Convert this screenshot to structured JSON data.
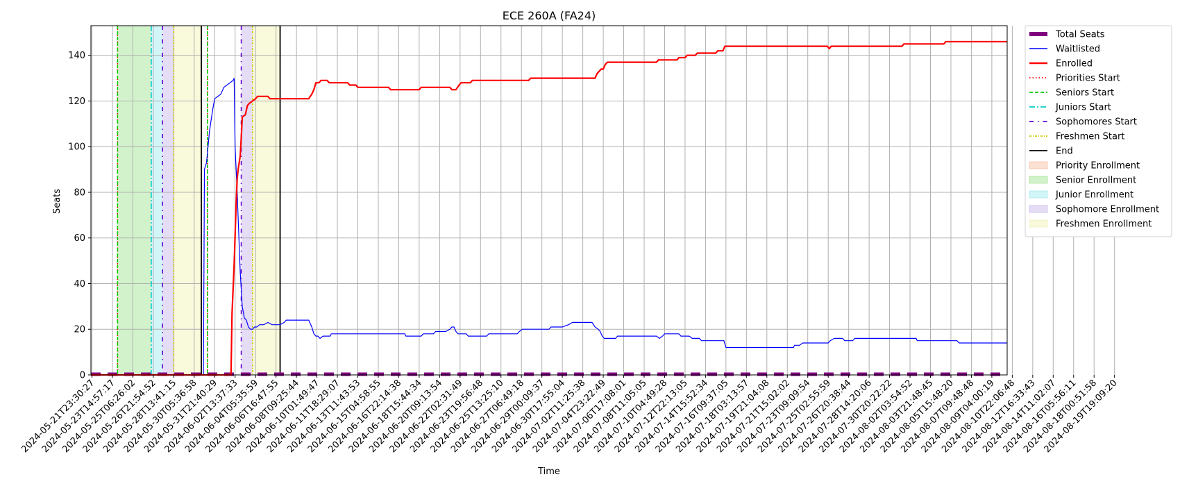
{
  "chart_data": {
    "type": "line",
    "title": "ECE 260A (FA24)",
    "xlabel": "Time",
    "ylabel": "Seats",
    "ylim": [
      0,
      153
    ],
    "y_ticks": [
      0,
      20,
      40,
      60,
      80,
      100,
      120,
      140
    ],
    "grid": true,
    "legend_position": "outside right",
    "x_tick_labels": [
      "2024-05-21T23:30:27",
      "2024-05-23T14:57:17",
      "2024-05-25T06:26:02",
      "2024-05-26T21:54:52",
      "2024-05-28T13:41:15",
      "2024-05-30T05:36:58",
      "2024-05-31T21:40:29",
      "2024-06-02T13:37:33",
      "2024-06-04T05:35:59",
      "2024-06-06T16:47:55",
      "2024-06-08T09:25:44",
      "2024-06-10T01:49:47",
      "2024-06-11T18:29:07",
      "2024-06-13T11:43:53",
      "2024-06-15T04:58:55",
      "2024-06-16T22:14:38",
      "2024-06-18T15:44:34",
      "2024-06-20T09:13:54",
      "2024-06-22T02:31:49",
      "2024-06-23T19:56:48",
      "2024-06-25T13:25:10",
      "2024-06-27T06:49:18",
      "2024-06-29T00:09:37",
      "2024-06-30T17:55:04",
      "2024-07-02T11:25:38",
      "2024-07-04T23:22:49",
      "2024-07-06T17:08:01",
      "2024-07-08T11:05:05",
      "2024-07-10T04:49:28",
      "2024-07-12T22:13:05",
      "2024-07-14T15:52:34",
      "2024-07-16T09:37:05",
      "2024-07-18T03:13:57",
      "2024-07-19T21:04:08",
      "2024-07-21T15:02:02",
      "2024-07-23T09:09:54",
      "2024-07-25T02:55:59",
      "2024-07-26T20:38:44",
      "2024-07-28T14:20:06",
      "2024-07-30T20:22:22",
      "2024-08-02T03:54:52",
      "2024-08-03T21:48:45",
      "2024-08-05T15:48:20",
      "2024-08-07T09:48:48",
      "2024-08-09T04:00:19",
      "2024-08-10T22:06:48",
      "2024-08-12T16:33:43",
      "2024-08-14T11:02:07",
      "2024-08-16T05:56:11",
      "2024-08-18T00:51:58",
      "2024-08-19T19:09:20"
    ],
    "x_range": [
      -0.05,
      44.75
    ],
    "series": [
      {
        "name": "Total Seats",
        "color": "#800080",
        "style": "thick-dashed",
        "points": [
          [
            -0.05,
            0
          ],
          [
            44.75,
            0
          ]
        ]
      },
      {
        "name": "Waitlisted",
        "color": "#0000ff",
        "style": "solid-thin",
        "points": [
          [
            -0.05,
            0
          ],
          [
            5.45,
            0
          ],
          [
            5.5,
            90
          ],
          [
            5.6,
            93
          ],
          [
            5.75,
            107
          ],
          [
            5.9,
            116
          ],
          [
            6.0,
            121
          ],
          [
            6.15,
            122
          ],
          [
            6.3,
            123
          ],
          [
            6.45,
            126
          ],
          [
            6.6,
            127
          ],
          [
            6.75,
            128
          ],
          [
            6.9,
            129
          ],
          [
            6.95,
            130
          ],
          [
            7.0,
            100
          ],
          [
            7.1,
            80
          ],
          [
            7.25,
            45
          ],
          [
            7.35,
            30
          ],
          [
            7.45,
            25
          ],
          [
            7.55,
            24
          ],
          [
            7.65,
            21
          ],
          [
            7.75,
            20
          ],
          [
            7.85,
            20
          ],
          [
            7.95,
            21
          ],
          [
            8.05,
            21
          ],
          [
            8.2,
            22
          ],
          [
            8.4,
            22
          ],
          [
            8.6,
            23
          ],
          [
            8.8,
            22
          ],
          [
            9.2,
            22
          ],
          [
            9.4,
            23
          ],
          [
            9.5,
            24
          ],
          [
            10.6,
            24
          ],
          [
            10.75,
            21
          ],
          [
            10.85,
            18
          ],
          [
            10.95,
            17
          ],
          [
            11.05,
            17
          ],
          [
            11.15,
            16
          ],
          [
            11.3,
            17
          ],
          [
            11.65,
            17
          ],
          [
            11.7,
            18
          ],
          [
            15.3,
            18
          ],
          [
            15.35,
            17
          ],
          [
            16.1,
            17
          ],
          [
            16.2,
            18
          ],
          [
            16.7,
            18
          ],
          [
            16.8,
            19
          ],
          [
            17.3,
            19
          ],
          [
            17.5,
            20
          ],
          [
            17.6,
            21
          ],
          [
            17.7,
            21
          ],
          [
            17.8,
            19
          ],
          [
            17.9,
            18
          ],
          [
            18.3,
            18
          ],
          [
            18.4,
            17
          ],
          [
            19.3,
            17
          ],
          [
            19.4,
            18
          ],
          [
            20.8,
            18
          ],
          [
            20.9,
            19
          ],
          [
            21.05,
            20
          ],
          [
            22.35,
            20
          ],
          [
            22.45,
            21
          ],
          [
            23.0,
            21
          ],
          [
            23.3,
            22
          ],
          [
            23.5,
            23
          ],
          [
            24.45,
            23
          ],
          [
            24.6,
            21
          ],
          [
            24.75,
            20
          ],
          [
            24.85,
            19
          ],
          [
            24.95,
            17
          ],
          [
            25.05,
            16
          ],
          [
            25.6,
            16
          ],
          [
            25.7,
            17
          ],
          [
            27.6,
            17
          ],
          [
            27.75,
            16
          ],
          [
            27.9,
            17
          ],
          [
            28.0,
            18
          ],
          [
            28.7,
            18
          ],
          [
            28.8,
            17
          ],
          [
            29.2,
            17
          ],
          [
            29.35,
            16
          ],
          [
            29.7,
            16
          ],
          [
            29.8,
            15
          ],
          [
            30.9,
            15
          ],
          [
            31.0,
            12
          ],
          [
            34.3,
            12
          ],
          [
            34.35,
            13
          ],
          [
            34.6,
            13
          ],
          [
            34.75,
            14
          ],
          [
            36.0,
            14
          ],
          [
            36.1,
            15
          ],
          [
            36.3,
            16
          ],
          [
            36.7,
            16
          ],
          [
            36.8,
            15
          ],
          [
            37.2,
            15
          ],
          [
            37.3,
            16
          ],
          [
            40.3,
            16
          ],
          [
            40.35,
            15
          ],
          [
            42.3,
            15
          ],
          [
            42.4,
            14
          ],
          [
            44.75,
            14
          ]
        ]
      },
      {
        "name": "Enrolled",
        "color": "#ff0000",
        "style": "solid-thick",
        "points": [
          [
            -0.05,
            0
          ],
          [
            6.8,
            0
          ],
          [
            6.85,
            27
          ],
          [
            6.95,
            48
          ],
          [
            7.05,
            75
          ],
          [
            7.1,
            86
          ],
          [
            7.15,
            90
          ],
          [
            7.25,
            96
          ],
          [
            7.3,
            104
          ],
          [
            7.35,
            113
          ],
          [
            7.5,
            114
          ],
          [
            7.6,
            118
          ],
          [
            7.7,
            119
          ],
          [
            7.85,
            120
          ],
          [
            8.0,
            121
          ],
          [
            8.1,
            122
          ],
          [
            8.6,
            122
          ],
          [
            8.7,
            121
          ],
          [
            10.6,
            121
          ],
          [
            10.75,
            123
          ],
          [
            10.85,
            125
          ],
          [
            10.95,
            128
          ],
          [
            11.1,
            128
          ],
          [
            11.2,
            129
          ],
          [
            11.5,
            129
          ],
          [
            11.6,
            128
          ],
          [
            12.5,
            128
          ],
          [
            12.6,
            127
          ],
          [
            12.9,
            127
          ],
          [
            13.0,
            126
          ],
          [
            14.5,
            126
          ],
          [
            14.6,
            125
          ],
          [
            16.0,
            125
          ],
          [
            16.1,
            126
          ],
          [
            17.5,
            126
          ],
          [
            17.6,
            125
          ],
          [
            17.8,
            125
          ],
          [
            17.95,
            127
          ],
          [
            18.05,
            128
          ],
          [
            18.5,
            128
          ],
          [
            18.6,
            129
          ],
          [
            21.35,
            129
          ],
          [
            21.45,
            130
          ],
          [
            24.6,
            130
          ],
          [
            24.7,
            132
          ],
          [
            24.8,
            133
          ],
          [
            24.9,
            134
          ],
          [
            25.0,
            134
          ],
          [
            25.1,
            136
          ],
          [
            25.2,
            137
          ],
          [
            27.6,
            137
          ],
          [
            27.7,
            138
          ],
          [
            28.6,
            138
          ],
          [
            28.7,
            139
          ],
          [
            29.0,
            139
          ],
          [
            29.1,
            140
          ],
          [
            29.5,
            140
          ],
          [
            29.6,
            141
          ],
          [
            30.5,
            141
          ],
          [
            30.6,
            142
          ],
          [
            30.85,
            142
          ],
          [
            30.95,
            144
          ],
          [
            35.95,
            144
          ],
          [
            36.05,
            143
          ],
          [
            36.15,
            144
          ],
          [
            39.6,
            144
          ],
          [
            39.7,
            145
          ],
          [
            41.65,
            145
          ],
          [
            41.75,
            146
          ],
          [
            44.75,
            146
          ]
        ]
      }
    ],
    "vlines": [
      {
        "name": "Priorities Start",
        "color": "#ff0000",
        "style": "dotted",
        "x": [
          1.25,
          5.65
        ]
      },
      {
        "name": "Seniors Start",
        "color": "#00cc00",
        "style": "dashed",
        "x": [
          1.25,
          5.65
        ]
      },
      {
        "name": "Juniors Start",
        "color": "#00cccc",
        "style": "dashdot",
        "x": [
          2.9
        ]
      },
      {
        "name": "Sophomores Start",
        "color": "#6600cc",
        "style": "loosedash",
        "x": [
          3.45,
          7.3
        ]
      },
      {
        "name": "Freshmen Start",
        "color": "#cccc00",
        "style": "dashdot-dense",
        "x": [
          4.0,
          7.85
        ]
      },
      {
        "name": "End",
        "color": "#000000",
        "style": "solid",
        "x": [
          5.35,
          9.2
        ]
      }
    ],
    "spans": [
      {
        "name": "Priority Enrollment",
        "color": "#f4a582",
        "ranges": []
      },
      {
        "name": "Senior Enrollment",
        "color": "#7fdb6a",
        "ranges": [
          [
            1.25,
            2.9
          ]
        ]
      },
      {
        "name": "Junior Enrollment",
        "color": "#7fe3ea",
        "ranges": [
          [
            2.9,
            3.45
          ]
        ]
      },
      {
        "name": "Sophomore Enrollment",
        "color": "#b59ce6",
        "ranges": [
          [
            3.45,
            4.0
          ],
          [
            7.3,
            7.85
          ]
        ]
      },
      {
        "name": "Freshmen Enrollment",
        "color": "#eeee9c",
        "ranges": [
          [
            4.0,
            5.35
          ],
          [
            7.85,
            9.2
          ]
        ]
      }
    ],
    "legend": [
      "Total Seats",
      "Waitlisted",
      "Enrolled",
      "Priorities Start",
      "Seniors Start",
      "Juniors Start",
      "Sophomores Start",
      "Freshmen Start",
      "End",
      "Priority Enrollment",
      "Senior Enrollment",
      "Junior Enrollment",
      "Sophomore Enrollment",
      "Freshmen Enrollment"
    ]
  }
}
